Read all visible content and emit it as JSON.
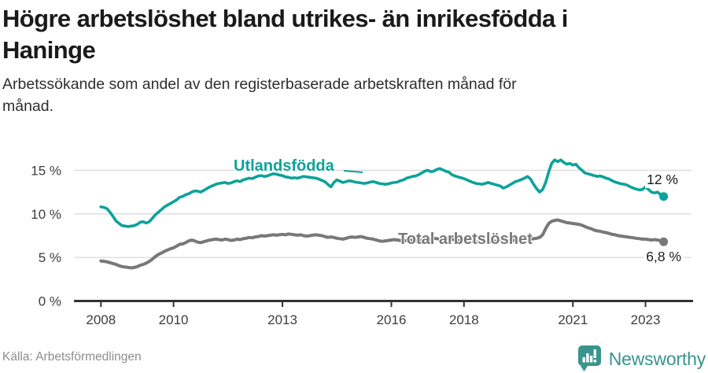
{
  "header": {
    "title_lines": [
      "Högre arbetslöshet bland utrikes- än inrikesfödda i",
      "Haninge"
    ],
    "subtitle_lines": [
      "Arbetssökande som andel av den registerbaserade arbetskraften månad för",
      "månad."
    ]
  },
  "footer": {
    "source": "Källa: Arbetsförmedlingen",
    "brand": "Newsworthy",
    "brand_color": "#3A948E",
    "brand_icon": "speech-bubble-bar-chart"
  },
  "chart_data": {
    "type": "line",
    "unit": "%",
    "grid": "horizontal",
    "x_axis": {
      "start_year": 2008,
      "end_year": 2023.5,
      "ticks": [
        {
          "year": 2008,
          "label": "2008"
        },
        {
          "year": 2010,
          "label": "2010"
        },
        {
          "year": 2013,
          "label": "2013"
        },
        {
          "year": 2016,
          "label": "2016"
        },
        {
          "year": 2018,
          "label": "2018"
        },
        {
          "year": 2021,
          "label": "2021"
        },
        {
          "year": 2023,
          "label": "2023"
        }
      ]
    },
    "y_axis": {
      "min": 0,
      "max": 16.5,
      "ticks": [
        {
          "value": 0,
          "label": "0 %"
        },
        {
          "value": 5,
          "label": "5 %"
        },
        {
          "value": 10,
          "label": "10 %"
        },
        {
          "value": 15,
          "label": "15 %"
        }
      ]
    },
    "series": [
      {
        "name": "Utlandsfödda",
        "color": "#0DA29A",
        "end_label": "12 %",
        "end_value": 12,
        "start_year": 2008,
        "step_months": 1,
        "stroke_width": 3.6,
        "values": [
          10.8,
          10.75,
          10.6,
          10.2,
          9.7,
          9.2,
          8.9,
          8.65,
          8.6,
          8.55,
          8.6,
          8.65,
          8.8,
          9.05,
          9.1,
          8.95,
          9.1,
          9.5,
          9.9,
          10.2,
          10.5,
          10.8,
          11.0,
          11.2,
          11.4,
          11.6,
          11.9,
          12.0,
          12.2,
          12.3,
          12.5,
          12.65,
          12.6,
          12.5,
          12.7,
          12.9,
          13.1,
          13.25,
          13.4,
          13.5,
          13.55,
          13.6,
          13.5,
          13.55,
          13.7,
          13.8,
          13.7,
          13.9,
          14.0,
          14.1,
          14.05,
          14.2,
          14.35,
          14.4,
          14.3,
          14.35,
          14.5,
          14.6,
          14.55,
          14.45,
          14.4,
          14.25,
          14.2,
          14.1,
          14.15,
          14.1,
          14.2,
          14.3,
          14.25,
          14.2,
          14.15,
          14.1,
          14.0,
          13.85,
          13.7,
          13.4,
          13.1,
          13.6,
          13.9,
          13.75,
          13.6,
          13.7,
          13.8,
          13.75,
          13.65,
          13.6,
          13.55,
          13.5,
          13.55,
          13.65,
          13.7,
          13.6,
          13.5,
          13.45,
          13.4,
          13.45,
          13.55,
          13.6,
          13.65,
          13.8,
          13.9,
          14.1,
          14.2,
          14.3,
          14.35,
          14.5,
          14.7,
          14.9,
          15.0,
          14.85,
          14.9,
          15.1,
          15.2,
          15.05,
          14.9,
          14.8,
          14.5,
          14.35,
          14.25,
          14.15,
          14.05,
          13.9,
          13.75,
          13.6,
          13.5,
          13.45,
          13.4,
          13.5,
          13.6,
          13.5,
          13.4,
          13.3,
          13.2,
          12.95,
          13.1,
          13.3,
          13.5,
          13.7,
          13.8,
          13.95,
          14.1,
          14.3,
          14.0,
          13.4,
          12.9,
          12.5,
          12.8,
          13.6,
          14.8,
          15.8,
          16.2,
          16.0,
          16.2,
          15.9,
          15.7,
          15.8,
          15.6,
          15.7,
          15.3,
          15.0,
          14.7,
          14.6,
          14.5,
          14.4,
          14.3,
          14.35,
          14.25,
          14.1,
          14.0,
          13.8,
          13.65,
          13.55,
          13.45,
          13.4,
          13.3,
          13.1,
          12.95,
          12.85,
          12.75,
          12.8,
          13.1,
          12.8,
          12.5,
          12.4,
          12.5,
          12.2,
          12.0
        ]
      },
      {
        "name": "Total arbetslöshet",
        "color": "#787878",
        "end_label": "6,8 %",
        "end_value": 6.8,
        "start_year": 2008,
        "step_months": 1,
        "stroke_width": 4,
        "values": [
          4.6,
          4.55,
          4.5,
          4.4,
          4.3,
          4.2,
          4.05,
          3.95,
          3.9,
          3.85,
          3.8,
          3.85,
          3.95,
          4.1,
          4.2,
          4.35,
          4.55,
          4.8,
          5.1,
          5.35,
          5.5,
          5.7,
          5.85,
          6.0,
          6.1,
          6.3,
          6.5,
          6.55,
          6.7,
          6.9,
          7.0,
          6.9,
          6.75,
          6.7,
          6.8,
          6.9,
          7.0,
          7.05,
          7.1,
          7.05,
          7.0,
          7.1,
          7.05,
          6.95,
          7.0,
          7.1,
          7.05,
          7.15,
          7.2,
          7.3,
          7.25,
          7.35,
          7.4,
          7.5,
          7.45,
          7.5,
          7.55,
          7.6,
          7.55,
          7.6,
          7.65,
          7.6,
          7.7,
          7.65,
          7.6,
          7.55,
          7.6,
          7.5,
          7.45,
          7.5,
          7.55,
          7.6,
          7.55,
          7.5,
          7.4,
          7.3,
          7.35,
          7.3,
          7.2,
          7.15,
          7.1,
          7.2,
          7.3,
          7.35,
          7.3,
          7.35,
          7.4,
          7.3,
          7.2,
          7.15,
          7.1,
          7.0,
          6.9,
          6.85,
          6.9,
          6.95,
          7.0,
          7.05,
          7.0,
          6.95,
          6.9,
          6.95,
          7.0,
          6.95,
          6.9,
          6.95,
          7.0,
          7.05,
          7.1,
          7.15,
          7.2,
          7.15,
          7.1,
          7.15,
          7.2,
          7.15,
          7.1,
          7.0,
          6.95,
          6.9,
          6.85,
          6.9,
          6.85,
          6.8,
          6.75,
          6.8,
          6.85,
          6.8,
          6.75,
          6.8,
          6.85,
          6.9,
          6.95,
          6.9,
          6.85,
          6.9,
          6.95,
          7.0,
          7.0,
          7.05,
          7.0,
          7.05,
          7.1,
          7.15,
          7.2,
          7.3,
          7.6,
          8.3,
          8.9,
          9.15,
          9.25,
          9.3,
          9.2,
          9.1,
          9.0,
          8.95,
          8.9,
          8.85,
          8.8,
          8.7,
          8.55,
          8.4,
          8.3,
          8.15,
          8.05,
          8.0,
          7.9,
          7.85,
          7.75,
          7.65,
          7.6,
          7.5,
          7.45,
          7.4,
          7.35,
          7.3,
          7.25,
          7.2,
          7.15,
          7.1,
          7.1,
          7.05,
          7.0,
          7.05,
          7.0,
          6.9,
          6.8
        ]
      }
    ]
  }
}
